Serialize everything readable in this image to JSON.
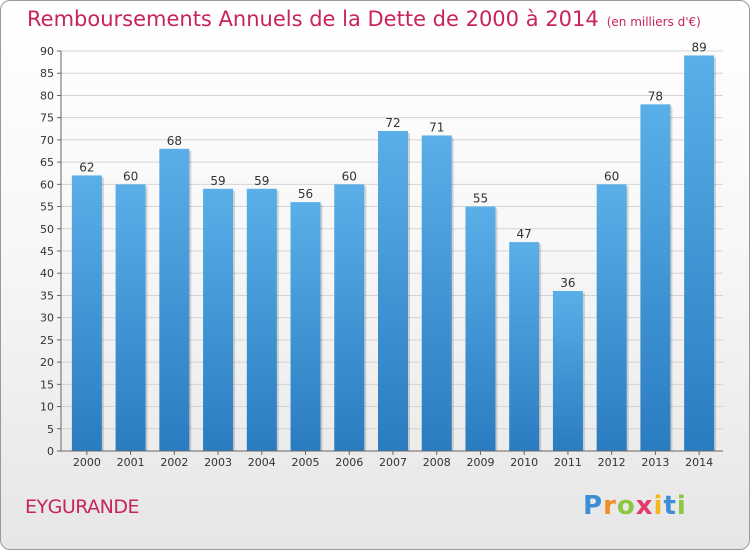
{
  "chart_data": {
    "type": "bar",
    "title": "Remboursements Annuels de la Dette de 2000 à 2014",
    "subtitle": "(en milliers d'€)",
    "categories": [
      "2000",
      "2001",
      "2002",
      "2003",
      "2004",
      "2005",
      "2006",
      "2007",
      "2008",
      "2009",
      "2010",
      "2011",
      "2012",
      "2013",
      "2014"
    ],
    "values": [
      62,
      60,
      68,
      59,
      59,
      56,
      60,
      72,
      71,
      55,
      47,
      36,
      60,
      78,
      89
    ],
    "ylim": [
      0,
      90
    ],
    "yticks": [
      0,
      5,
      10,
      15,
      20,
      25,
      30,
      35,
      40,
      45,
      50,
      55,
      60,
      65,
      70,
      75,
      80,
      85,
      90
    ],
    "grid": true,
    "bar_color": "#3f94d6"
  },
  "footer": {
    "commune": "EYGURANDE",
    "logo": {
      "p": "P",
      "r": "r",
      "o": "o",
      "x": "x",
      "i1": "i",
      "t": "t",
      "i2": "i"
    }
  }
}
